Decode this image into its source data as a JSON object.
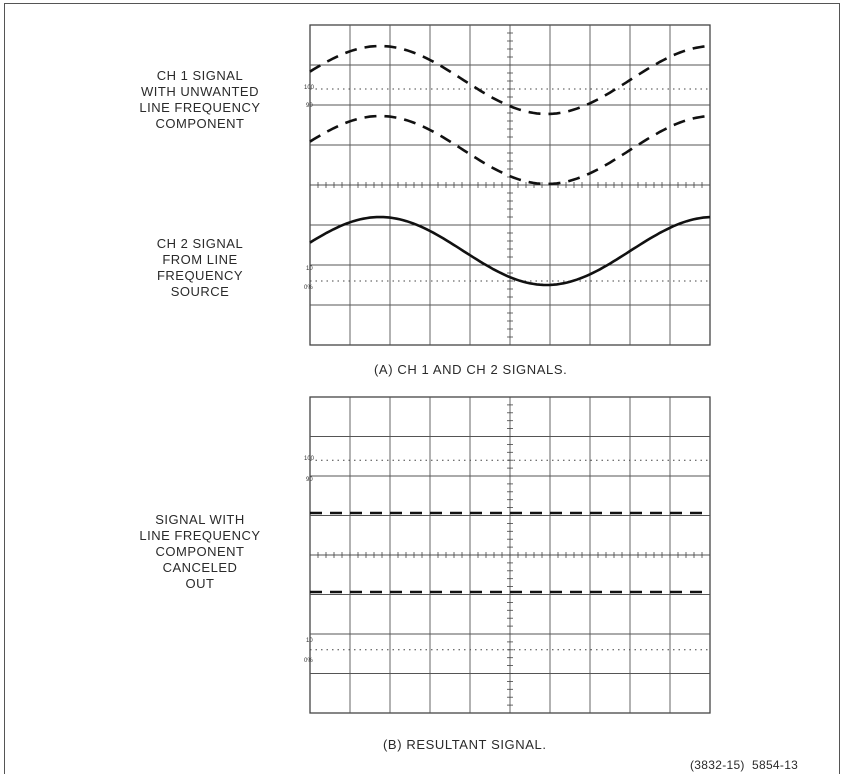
{
  "panel_a": {
    "ch1_label": [
      "CH 1 SIGNAL",
      "WITH UNWANTED",
      "LINE FREQUENCY",
      "COMPONENT"
    ],
    "ch2_label": [
      "CH 2 SIGNAL",
      "FROM LINE",
      "FREQUENCY",
      "SOURCE"
    ],
    "caption": "(A) CH 1 AND CH 2 SIGNALS.",
    "graticule_marks": [
      "100",
      "90",
      "10",
      "0%"
    ]
  },
  "panel_b": {
    "label": [
      "SIGNAL WITH",
      "LINE FREQUENCY",
      "COMPONENT",
      "CANCELED",
      "OUT"
    ],
    "caption": "(B) RESULTANT SIGNAL.",
    "graticule_marks": [
      "100",
      "90",
      "10",
      "0%"
    ]
  },
  "figure_ref": "(3832-15)  5854-13"
}
